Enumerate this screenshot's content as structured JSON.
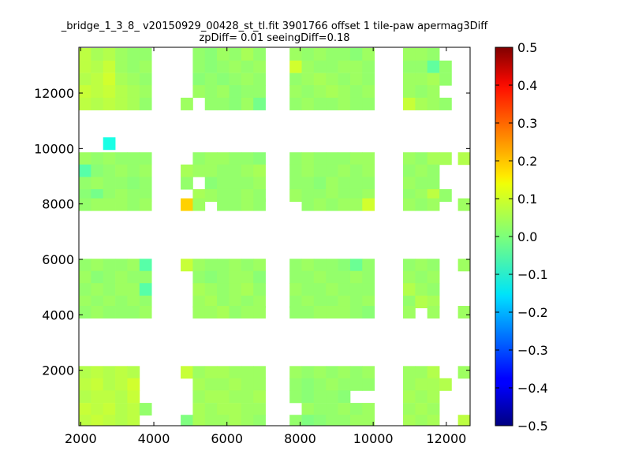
{
  "chart_data": {
    "type": "heatmap",
    "title": "_bridge_1_3_8_ v20150929_00428_st_tl.fit 3901766 offset 1 tile-paw apermag3Diff",
    "subtitle": "zpDiff= 0.01 seeingDiff=0.18",
    "xlabel": "",
    "ylabel": "",
    "xlim": [
      1950,
      12650
    ],
    "ylim": [
      0,
      13650
    ],
    "x_ticks": [
      {
        "value": 2000,
        "label": "2000"
      },
      {
        "value": 4000,
        "label": "4000"
      },
      {
        "value": 6000,
        "label": "6000"
      },
      {
        "value": 8000,
        "label": "8000"
      },
      {
        "value": 10000,
        "label": "10000"
      },
      {
        "value": 12000,
        "label": "12000"
      }
    ],
    "y_ticks": [
      {
        "value": 2000,
        "label": "2000"
      },
      {
        "value": 4000,
        "label": "4000"
      },
      {
        "value": 6000,
        "label": "6000"
      },
      {
        "value": 8000,
        "label": "8000"
      },
      {
        "value": 10000,
        "label": "10000"
      },
      {
        "value": 12000,
        "label": "12000"
      }
    ],
    "colorbar": {
      "colormap": "jet",
      "vmin": -0.5,
      "vmax": 0.5,
      "ticks": [
        {
          "value": 0.5,
          "label": "0.5"
        },
        {
          "value": 0.4,
          "label": "0.4"
        },
        {
          "value": 0.3,
          "label": "0.3"
        },
        {
          "value": 0.2,
          "label": "0.2"
        },
        {
          "value": 0.1,
          "label": "0.1"
        },
        {
          "value": 0.0,
          "label": "0.0"
        },
        {
          "value": -0.1,
          "label": "−0.1"
        },
        {
          "value": -0.2,
          "label": "−0.2"
        },
        {
          "value": -0.3,
          "label": "−0.3"
        },
        {
          "value": -0.4,
          "label": "−0.4"
        },
        {
          "value": -0.5,
          "label": "−0.5"
        }
      ]
    },
    "cell_size": [
      331,
      444
    ],
    "x_centers": [
      2116,
      2447,
      2778,
      3110,
      3441,
      3772,
      4900,
      5231,
      5562,
      5893,
      6225,
      6556,
      6887,
      7879,
      8210,
      8541,
      8872,
      9204,
      9535,
      9866,
      10982,
      11313,
      11644,
      11975,
      12484
    ],
    "y_rows": [
      {
        "y": 13400,
        "values": [
          0.06,
          0.04,
          0.05,
          0.03,
          0.02,
          0.02,
          null,
          0.02,
          0.01,
          0.03,
          0.02,
          0.04,
          0.02,
          0.03,
          0.02,
          0.03,
          0.02,
          0.02,
          0.01,
          0.03,
          0.03,
          0.03,
          0.02,
          null,
          null
        ]
      },
      {
        "y": 12950,
        "values": [
          0.06,
          0.05,
          0.07,
          0.03,
          0.02,
          0.03,
          null,
          0.02,
          0.01,
          0.02,
          0.03,
          0.02,
          0.03,
          0.08,
          0.03,
          0.02,
          0.02,
          0.03,
          0.03,
          0.02,
          0.02,
          0.02,
          -0.03,
          0.02,
          null
        ]
      },
      {
        "y": 12500,
        "values": [
          0.05,
          0.06,
          0.08,
          0.04,
          0.03,
          0.02,
          null,
          0.01,
          0.02,
          0.01,
          0.02,
          0.03,
          0.02,
          0.02,
          0.03,
          0.04,
          0.03,
          0.02,
          0.03,
          0.02,
          0.03,
          0.03,
          0.04,
          0.02,
          null
        ]
      },
      {
        "y": 12060,
        "values": [
          0.07,
          0.06,
          0.07,
          0.05,
          0.04,
          0.03,
          null,
          0.03,
          0.02,
          0.03,
          0.01,
          0.02,
          0.02,
          0.03,
          0.02,
          0.03,
          0.04,
          0.03,
          0.02,
          0.03,
          0.03,
          0.02,
          0.03,
          null,
          null
        ]
      },
      {
        "y": 11610,
        "values": [
          0.06,
          0.05,
          0.06,
          0.05,
          0.04,
          0.02,
          0.03,
          null,
          0.02,
          0.02,
          0.01,
          0.03,
          -0.01,
          0.02,
          0.03,
          0.02,
          0.02,
          0.03,
          0.02,
          0.02,
          0.07,
          0.04,
          0.03,
          0.02,
          null
        ]
      },
      {
        "y": 10180,
        "values": [
          null,
          null,
          -0.1,
          null,
          null,
          null,
          null,
          null,
          null,
          null,
          null,
          null,
          null,
          null,
          null,
          null,
          null,
          null,
          null,
          null,
          null,
          null,
          null,
          null,
          null
        ]
      },
      {
        "y": 9640,
        "values": [
          0.03,
          0.02,
          0.03,
          0.02,
          0.02,
          0.02,
          null,
          0.02,
          0.03,
          0.03,
          0.02,
          0.02,
          0.01,
          0.02,
          0.03,
          0.02,
          0.02,
          0.02,
          0.03,
          0.03,
          0.03,
          0.02,
          0.04,
          0.04,
          0.05
        ]
      },
      {
        "y": 9200,
        "values": [
          -0.04,
          0.01,
          0.02,
          0.03,
          0.02,
          0.03,
          0.04,
          0.03,
          0.03,
          0.02,
          0.02,
          0.03,
          0.04,
          0.02,
          0.03,
          0.02,
          0.02,
          0.03,
          0.02,
          0.03,
          0.02,
          0.03,
          0.02,
          null,
          null
        ]
      },
      {
        "y": 8750,
        "values": [
          0.02,
          0.03,
          0.02,
          0.02,
          0.01,
          0.02,
          0.02,
          null,
          0.01,
          0.02,
          0.02,
          0.02,
          0.03,
          0.02,
          0.02,
          0.01,
          0.03,
          0.02,
          0.02,
          0.02,
          0.03,
          0.02,
          0.02,
          null,
          null
        ]
      },
      {
        "y": 8310,
        "values": [
          0.01,
          -0.01,
          0.02,
          0.03,
          0.02,
          0.02,
          null,
          0.04,
          0.03,
          0.02,
          0.02,
          0.03,
          0.02,
          0.03,
          0.02,
          0.02,
          0.03,
          0.02,
          0.02,
          0.03,
          0.02,
          0.03,
          0.06,
          0.02,
          null
        ]
      },
      {
        "y": 7980,
        "values": [
          0.02,
          0.03,
          0.03,
          0.03,
          0.02,
          0.03,
          0.17,
          0.03,
          null,
          0.02,
          0.02,
          0.03,
          0.02,
          null,
          0.02,
          0.03,
          0.02,
          0.03,
          0.03,
          0.08,
          0.03,
          0.02,
          0.03,
          null,
          0.03
        ]
      },
      {
        "y": 5800,
        "values": [
          0.02,
          0.03,
          0.02,
          0.02,
          0.03,
          -0.04,
          0.07,
          0.03,
          0.02,
          0.02,
          0.03,
          0.02,
          0.03,
          0.02,
          0.03,
          0.02,
          0.02,
          0.01,
          -0.02,
          0.02,
          0.02,
          0.03,
          0.02,
          null,
          0.03
        ]
      },
      {
        "y": 5360,
        "values": [
          0.03,
          0.01,
          0.02,
          0.03,
          0.02,
          0.02,
          null,
          0.02,
          0.01,
          0.02,
          0.03,
          0.03,
          0.01,
          0.02,
          0.02,
          0.03,
          0.02,
          0.02,
          0.03,
          0.02,
          0.03,
          0.02,
          0.03,
          null,
          null
        ]
      },
      {
        "y": 4920,
        "values": [
          0.02,
          0.03,
          0.02,
          0.03,
          0.03,
          -0.04,
          null,
          0.04,
          0.03,
          0.02,
          0.03,
          0.04,
          0.02,
          0.03,
          0.02,
          0.02,
          0.03,
          0.02,
          0.02,
          0.02,
          0.05,
          0.03,
          0.02,
          null,
          null
        ]
      },
      {
        "y": 4470,
        "values": [
          0.03,
          0.02,
          0.03,
          0.02,
          0.03,
          0.02,
          null,
          0.03,
          0.04,
          0.02,
          0.03,
          0.02,
          0.03,
          0.02,
          0.03,
          0.02,
          0.02,
          0.03,
          0.02,
          0.03,
          0.02,
          0.05,
          0.04,
          null,
          null
        ]
      },
      {
        "y": 4100,
        "values": [
          0.02,
          0.03,
          0.02,
          0.02,
          0.02,
          0.03,
          null,
          0.03,
          0.03,
          0.04,
          0.02,
          0.03,
          0.03,
          0.02,
          0.02,
          0.03,
          0.03,
          0.03,
          0.02,
          0.01,
          0.03,
          null,
          0.03,
          null,
          0.03
        ]
      },
      {
        "y": 1930,
        "values": [
          0.05,
          0.06,
          0.05,
          0.06,
          0.05,
          null,
          0.07,
          0.03,
          0.04,
          0.04,
          0.03,
          0.03,
          0.03,
          0.03,
          0.02,
          0.03,
          0.02,
          0.03,
          0.02,
          0.03,
          0.03,
          0.03,
          0.05,
          null,
          0.03
        ]
      },
      {
        "y": 1490,
        "values": [
          0.06,
          0.07,
          0.05,
          0.06,
          0.08,
          null,
          null,
          0.04,
          0.03,
          0.03,
          0.04,
          0.03,
          0.03,
          0.02,
          0.01,
          0.02,
          0.03,
          0.02,
          0.02,
          0.02,
          0.03,
          0.04,
          0.04,
          0.05,
          null
        ]
      },
      {
        "y": 1050,
        "values": [
          0.05,
          0.06,
          0.06,
          0.05,
          0.07,
          null,
          null,
          0.03,
          0.04,
          0.04,
          0.03,
          0.03,
          0.04,
          0.02,
          0.01,
          0.02,
          0.02,
          0.01,
          null,
          null,
          0.04,
          0.03,
          0.04,
          null,
          null
        ]
      },
      {
        "y": 600,
        "values": [
          0.07,
          0.06,
          0.07,
          0.05,
          0.06,
          0.02,
          null,
          0.04,
          0.03,
          0.04,
          0.04,
          0.03,
          0.03,
          null,
          0.03,
          0.02,
          0.02,
          0.03,
          0.02,
          0.03,
          0.03,
          0.04,
          0.03,
          null,
          null
        ]
      },
      {
        "y": 170,
        "values": [
          0.06,
          0.07,
          0.06,
          0.05,
          0.06,
          null,
          0.0,
          0.04,
          0.03,
          0.03,
          0.04,
          0.03,
          0.02,
          0.02,
          0.0,
          0.01,
          0.02,
          0.02,
          0.03,
          0.03,
          0.04,
          0.03,
          0.04,
          null,
          0.06
        ]
      }
    ]
  }
}
